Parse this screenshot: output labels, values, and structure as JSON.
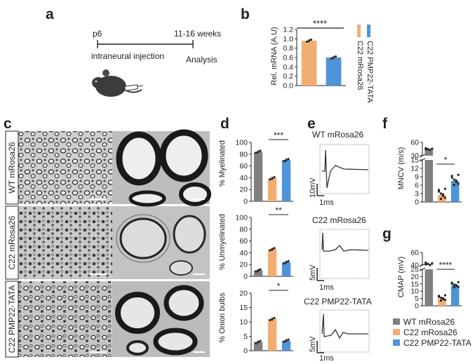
{
  "panel_letters": [
    "a",
    "b",
    "c",
    "d",
    "e",
    "f",
    "g"
  ],
  "colors": {
    "wt": "#808080",
    "c22": "#f2ae72",
    "tata": "#4f93d8"
  },
  "panel_a": {
    "start": "p6",
    "end": "11-16 weeks",
    "step1": "intraneural injection",
    "step2": "Analysis",
    "icon": "mouse-with-syringe-icon"
  },
  "panel_c": {
    "rows": [
      "WT mRosa26",
      "C22 mRosa26",
      "C22 PMP22-TATA"
    ]
  },
  "panel_e": {
    "traces": [
      {
        "title": "WT mRosa26",
        "scale_y": "10mV",
        "scale_x": "1ms"
      },
      {
        "title": "C22 mRosa26",
        "scale_y": "5mV",
        "scale_x": "1ms"
      },
      {
        "title": "C22 PMP22-TATA",
        "scale_y": "5mV",
        "scale_x": "1ms"
      }
    ]
  },
  "legend": [
    {
      "text": "WT mRosa26",
      "color": "#808080"
    },
    {
      "text": "C22 mRosa26",
      "color": "#f2ae72"
    },
    {
      "text": "C22 PMP22-TATA",
      "color": "#4f93d8"
    }
  ],
  "chart_data": [
    {
      "panel": "b",
      "type": "bar",
      "ylabel": "Rel. mRNA (A.U)",
      "ylim": [
        0,
        1.2
      ],
      "yticks": [
        "0.0",
        "0.2",
        "0.4",
        "0.6",
        "0.8",
        "1.0",
        "1.2"
      ],
      "legend": [
        "C22 mRosa26",
        "C22 PMP22-TATA"
      ],
      "series": [
        {
          "name": "C22 mRosa26",
          "value": 0.96
        },
        {
          "name": "C22 PMP22-TATA",
          "value": 0.6
        }
      ],
      "significance": "****"
    },
    {
      "panel": "d1",
      "type": "bar",
      "ylabel": "% Myelinated",
      "ylim": [
        0,
        100
      ],
      "yticks": [
        "0",
        "20",
        "40",
        "60",
        "80",
        "100"
      ],
      "series": [
        {
          "name": "WT mRosa26",
          "value": 84
        },
        {
          "name": "C22 mRosa26",
          "value": 39
        },
        {
          "name": "C22 PMP22-TATA",
          "value": 70
        }
      ],
      "significance": "***"
    },
    {
      "panel": "d2",
      "type": "bar",
      "ylabel": "% Unmyelinated",
      "ylim": [
        0,
        100
      ],
      "yticks": [
        "0",
        "20",
        "40",
        "60",
        "80",
        "100"
      ],
      "series": [
        {
          "name": "WT mRosa26",
          "value": 10
        },
        {
          "name": "C22 mRosa26",
          "value": 46
        },
        {
          "name": "C22 PMP22-TATA",
          "value": 24
        }
      ],
      "significance": "**"
    },
    {
      "panel": "d3",
      "type": "bar",
      "ylabel": "% Onion bulbs",
      "ylim": [
        0,
        20
      ],
      "yticks": [
        "0",
        "5",
        "10",
        "15",
        "20"
      ],
      "series": [
        {
          "name": "WT mRosa26",
          "value": 3
        },
        {
          "name": "C22 mRosa26",
          "value": 11
        },
        {
          "name": "C22 PMP22-TATA",
          "value": 3.5
        }
      ],
      "significance": "*"
    },
    {
      "panel": "f",
      "type": "bar",
      "ylabel": "MNCV (m/s)",
      "axis_break": true,
      "yticks": [
        "0",
        "3",
        "6",
        "9",
        "12",
        "15",
        "30",
        "60"
      ],
      "series": [
        {
          "name": "WT mRosa26",
          "value": 45
        },
        {
          "name": "C22 mRosa26",
          "value": 2.5
        },
        {
          "name": "C22 PMP22-TATA",
          "value": 7.5
        }
      ],
      "significance": "*"
    },
    {
      "panel": "g",
      "type": "bar",
      "ylabel": "CMAP (mV)",
      "axis_break": true,
      "yticks": [
        "0",
        "5",
        "10",
        "15",
        "20",
        "25",
        "40",
        "60"
      ],
      "series": [
        {
          "name": "WT mRosa26",
          "value": 42
        },
        {
          "name": "C22 mRosa26",
          "value": 5
        },
        {
          "name": "C22 PMP22-TATA",
          "value": 14
        }
      ],
      "significance": "****"
    }
  ]
}
